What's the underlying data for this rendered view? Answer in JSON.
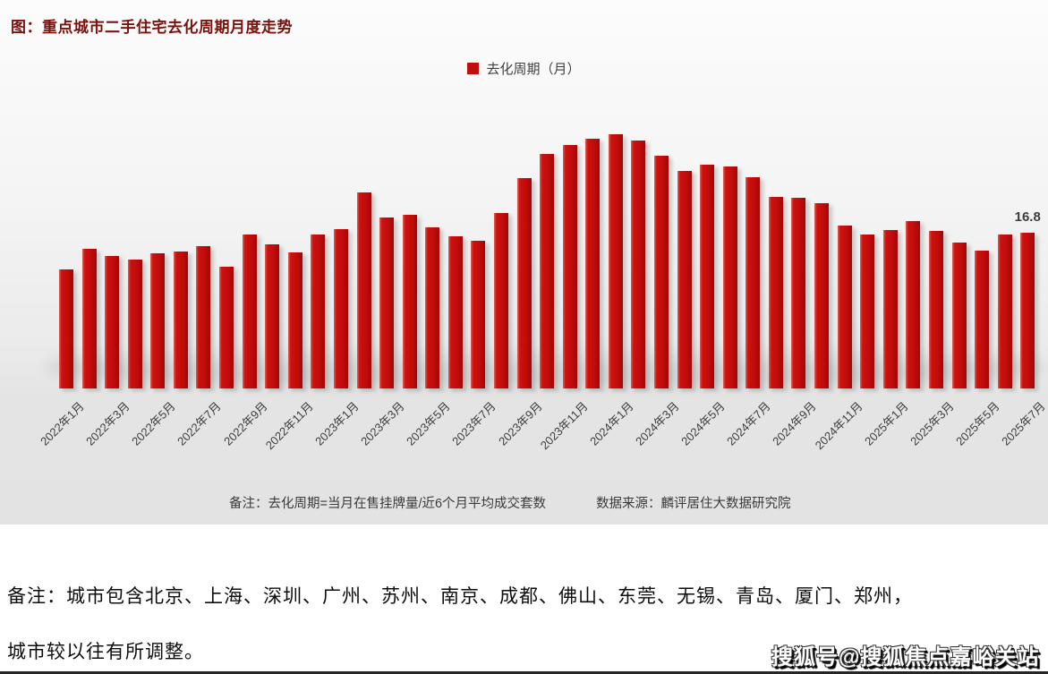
{
  "page": {
    "note_line1": "备注：城市包含北京、上海、深圳、广州、苏州、南京、成都、佛山、东莞、无锡、青岛、厦门、郑州，",
    "note_line2": "城市较以往有所调整。",
    "watermark": "搜狐号@搜狐焦点嘉峪关站"
  },
  "chart_notes": {
    "formula": "备注：去化周期=当月在售挂牌量/近6个月平均成交套数",
    "source": "数据来源：麟评居住大数据研究院"
  },
  "chart_data": {
    "type": "bar",
    "title": "图：重点城市二手住宅去化周期月度走势",
    "legend": [
      "去化周期（月）"
    ],
    "legend_position": "top-center",
    "grid": false,
    "ylabel": "去化周期（月）",
    "ylim": [
      0,
      30
    ],
    "bar_color": "#c00d0d",
    "last_value_label": "16.8",
    "x": [
      "2022年1月",
      "2022年2月",
      "2022年3月",
      "2022年4月",
      "2022年5月",
      "2022年6月",
      "2022年7月",
      "2022年8月",
      "2022年9月",
      "2022年10月",
      "2022年11月",
      "2022年12月",
      "2023年1月",
      "2023年2月",
      "2023年3月",
      "2023年4月",
      "2023年5月",
      "2023年6月",
      "2023年7月",
      "2023年8月",
      "2023年9月",
      "2023年10月",
      "2023年11月",
      "2023年12月",
      "2024年1月",
      "2024年2月",
      "2024年3月",
      "2024年4月",
      "2024年5月",
      "2024年6月",
      "2024年7月",
      "2024年8月",
      "2024年9月",
      "2024年10月",
      "2024年11月",
      "2024年12月",
      "2025年1月",
      "2025年2月",
      "2025年3月",
      "2025年4月",
      "2025年5月",
      "2025年6月",
      "2025年7月"
    ],
    "values": [
      12.9,
      15.1,
      14.3,
      13.9,
      14.6,
      14.8,
      15.4,
      13.2,
      16.6,
      15.6,
      14.7,
      16.6,
      17.2,
      21.2,
      18.5,
      18.8,
      17.4,
      16.4,
      16.0,
      19.0,
      22.7,
      25.3,
      26.3,
      27.0,
      27.5,
      26.8,
      25.1,
      23.5,
      24.2,
      24.0,
      22.8,
      20.7,
      20.6,
      20.0,
      17.6,
      16.6,
      17.1,
      18.1,
      17.0,
      15.8,
      14.9,
      16.6,
      16.8
    ],
    "xtick_labels": [
      "2022年1月",
      "2022年3月",
      "2022年5月",
      "2022年7月",
      "2022年9月",
      "2022年11月",
      "2023年1月",
      "2023年3月",
      "2023年5月",
      "2023年7月",
      "2023年9月",
      "2023年11月",
      "2024年1月",
      "2024年3月",
      "2024年5月",
      "2024年7月",
      "2024年9月",
      "2024年11月",
      "2025年1月",
      "2025年3月",
      "2025年5月",
      "2025年7月"
    ],
    "xtick_every": 2
  }
}
